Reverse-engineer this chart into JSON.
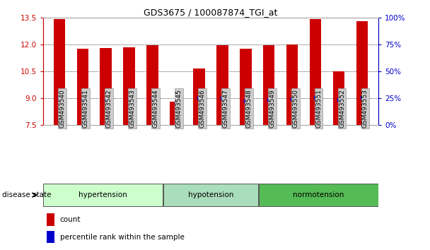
{
  "title": "GDS3675 / 100087874_TGI_at",
  "samples": [
    "GSM493540",
    "GSM493541",
    "GSM493542",
    "GSM493543",
    "GSM493544",
    "GSM493545",
    "GSM493546",
    "GSM493547",
    "GSM493548",
    "GSM493549",
    "GSM493550",
    "GSM493551",
    "GSM493552",
    "GSM493553"
  ],
  "bar_tops": [
    13.4,
    11.75,
    11.8,
    11.85,
    11.95,
    8.82,
    10.65,
    11.95,
    11.75,
    11.95,
    12.0,
    13.4,
    10.5,
    13.3
  ],
  "bar_bottoms": [
    7.5,
    7.5,
    7.5,
    7.5,
    7.5,
    7.5,
    7.5,
    7.5,
    7.5,
    7.5,
    7.5,
    7.5,
    7.5,
    7.5
  ],
  "percentile_values": [
    9.05,
    8.95,
    8.88,
    9.02,
    9.0,
    8.75,
    9.0,
    8.98,
    8.85,
    8.9,
    8.95,
    9.05,
    8.92,
    9.05
  ],
  "ylim": [
    7.5,
    13.5
  ],
  "yticks": [
    7.5,
    9.0,
    10.5,
    12.0,
    13.5
  ],
  "y2lim": [
    0,
    100
  ],
  "y2ticks": [
    0,
    25,
    50,
    75,
    100
  ],
  "bar_color": "#cc0000",
  "percentile_color": "#0000cc",
  "groups": [
    {
      "label": "hypertension",
      "start": 0,
      "end": 5,
      "color": "#ccffcc"
    },
    {
      "label": "hypotension",
      "start": 5,
      "end": 9,
      "color": "#aaddbb"
    },
    {
      "label": "normotension",
      "start": 9,
      "end": 14,
      "color": "#55bb55"
    }
  ],
  "disease_state_label": "disease state",
  "legend_count_label": "count",
  "legend_pct_label": "percentile rank within the sample",
  "bg_color": "#ffffff",
  "plot_bg_color": "#ffffff",
  "tick_bg_color": "#cccccc",
  "grid_color": "#000000",
  "bar_width": 0.5
}
